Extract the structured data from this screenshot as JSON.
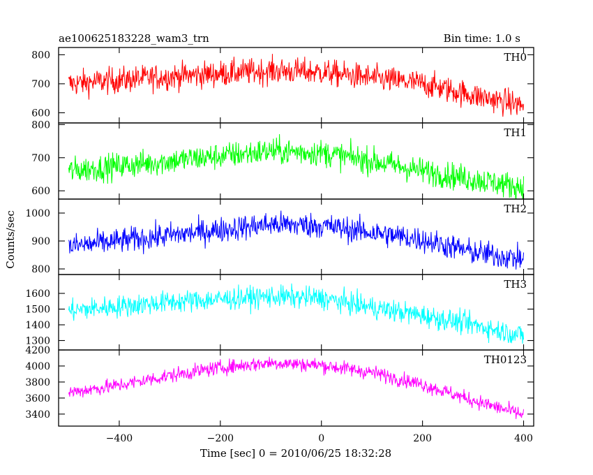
{
  "header": {
    "title": "ae100625183228_wam3_trn",
    "bin_time": "Bin time: 1.0 s"
  },
  "chart_data": {
    "type": "line",
    "xlabel": "Time [sec] 0 = 2010/06/25 18:32:28",
    "ylabel": "Counts/sec",
    "xlim": [
      -520,
      420
    ],
    "x_ticks": [
      -400,
      -200,
      0,
      200,
      400
    ],
    "x_tick_labels": [
      "−400",
      "−200",
      "0",
      "200",
      "400"
    ],
    "x_range": [
      -500,
      400
    ],
    "panels": [
      {
        "name": "TH0",
        "color": "#ff0000",
        "ylim": [
          565,
          825
        ],
        "y_ticks": [
          600,
          700,
          800
        ],
        "y_tick_labels": [
          "600",
          "700",
          "800"
        ],
        "trend_x": [
          -500,
          -300,
          -100,
          0,
          100,
          200,
          300,
          400
        ],
        "trend_y": [
          700,
          725,
          745,
          740,
          720,
          700,
          660,
          625
        ],
        "noise": 45
      },
      {
        "name": "TH1",
        "color": "#00ff00",
        "ylim": [
          575,
          805
        ],
        "y_ticks": [
          600,
          700,
          800
        ],
        "y_tick_labels": [
          "600",
          "700",
          "800"
        ],
        "trend_x": [
          -500,
          -300,
          -100,
          0,
          100,
          200,
          300,
          400
        ],
        "trend_y": [
          660,
          690,
          720,
          715,
          690,
          660,
          635,
          610
        ],
        "noise": 40
      },
      {
        "name": "TH2",
        "color": "#0000ff",
        "ylim": [
          780,
          1050
        ],
        "y_ticks": [
          800,
          900,
          1000
        ],
        "y_tick_labels": [
          "800",
          "900",
          "1000"
        ],
        "trend_x": [
          -500,
          -300,
          -100,
          0,
          100,
          200,
          300,
          400
        ],
        "trend_y": [
          880,
          920,
          960,
          955,
          930,
          905,
          860,
          835
        ],
        "noise": 45
      },
      {
        "name": "TH3",
        "color": "#00ffff",
        "ylim": [
          1240,
          1720
        ],
        "y_ticks": [
          1300,
          1400,
          1500,
          1600
        ],
        "y_tick_labels": [
          "1300",
          "1400",
          "1500",
          "1600"
        ],
        "trend_x": [
          -500,
          -300,
          -100,
          0,
          100,
          200,
          300,
          400
        ],
        "trend_y": [
          1490,
          1545,
          1580,
          1570,
          1510,
          1460,
          1400,
          1330
        ],
        "noise": 70
      },
      {
        "name": "TH0123",
        "color": "#ff00ff",
        "ylim": [
          3250,
          4200
        ],
        "y_ticks": [
          3400,
          3600,
          3800,
          4000,
          4200
        ],
        "y_tick_labels": [
          "3400",
          "3600",
          "3800",
          "4000",
          "4200"
        ],
        "trend_x": [
          -500,
          -400,
          -300,
          -200,
          -100,
          0,
          100,
          200,
          300,
          400
        ],
        "trend_y": [
          3670,
          3760,
          3880,
          3980,
          4040,
          4010,
          3920,
          3770,
          3570,
          3390
        ],
        "noise": 90
      }
    ]
  }
}
